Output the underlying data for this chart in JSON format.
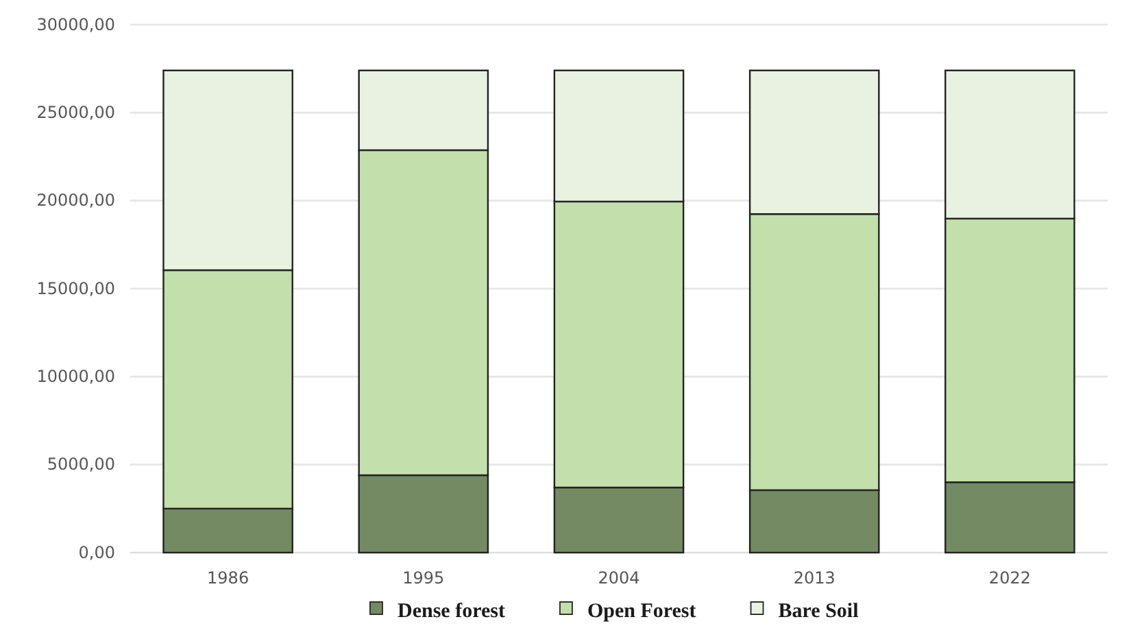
{
  "chart_data": {
    "type": "bar",
    "stacked": true,
    "categories": [
      "1986",
      "1995",
      "2004",
      "2013",
      "2022"
    ],
    "series": [
      {
        "name": "Dense forest",
        "color": "#738a63",
        "values": [
          2500,
          4400,
          3700,
          3550,
          4000
        ]
      },
      {
        "name": "Open Forest",
        "color": "#c3dfac",
        "values": [
          13550,
          18470,
          16250,
          15690,
          14980
        ]
      },
      {
        "name": "Bare Soil",
        "color": "#e9f2e1",
        "values": [
          11350,
          4530,
          7450,
          8160,
          8420
        ]
      }
    ],
    "ylim": [
      0,
      30000
    ],
    "yticks": [
      {
        "value": 0,
        "label": "0,00"
      },
      {
        "value": 5000,
        "label": "5000,00"
      },
      {
        "value": 10000,
        "label": "10000,00"
      },
      {
        "value": 15000,
        "label": "15000,00"
      },
      {
        "value": 20000,
        "label": "20000,00"
      },
      {
        "value": 25000,
        "label": "25000,00"
      },
      {
        "value": 30000,
        "label": "30000,00"
      }
    ],
    "grid": "y",
    "legend": "bottom"
  }
}
